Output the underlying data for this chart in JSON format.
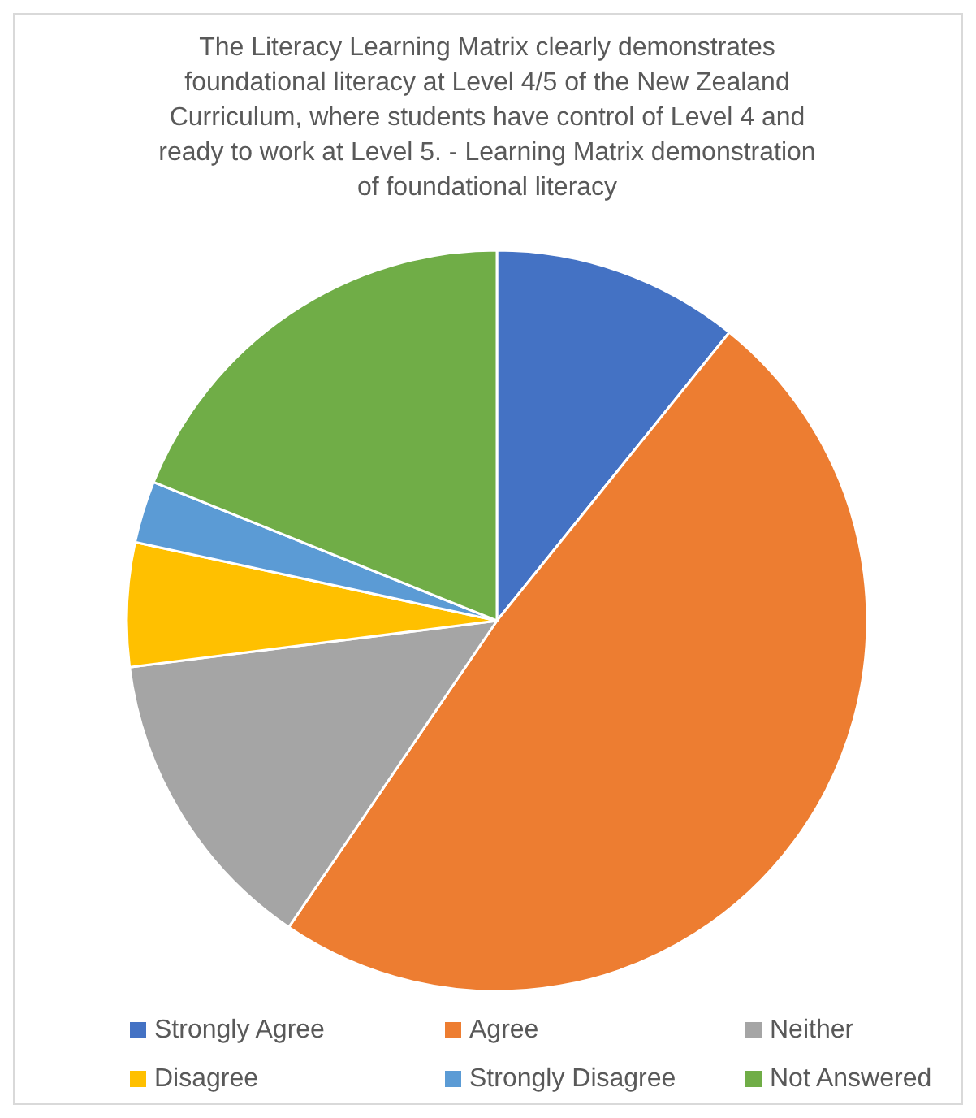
{
  "chart_data": {
    "type": "pie",
    "title": "The Literacy Learning Matrix clearly demonstrates foundational literacy at Level 4/5 of the New Zealand Curriculum, where students have control of Level 4 and ready to work at Level 5. - Learning Matrix demonstration of foundational literacy",
    "categories": [
      "Strongly Agree",
      "Agree",
      "Neither",
      "Disagree",
      "Strongly Disagree",
      "Not Answered"
    ],
    "values": [
      10.8,
      48.7,
      13.5,
      5.4,
      2.7,
      18.9
    ],
    "colors": [
      "#4472c4",
      "#ed7d31",
      "#a5a5a5",
      "#ffc000",
      "#5b9bd5",
      "#70ad47"
    ],
    "legend": "bottom"
  }
}
